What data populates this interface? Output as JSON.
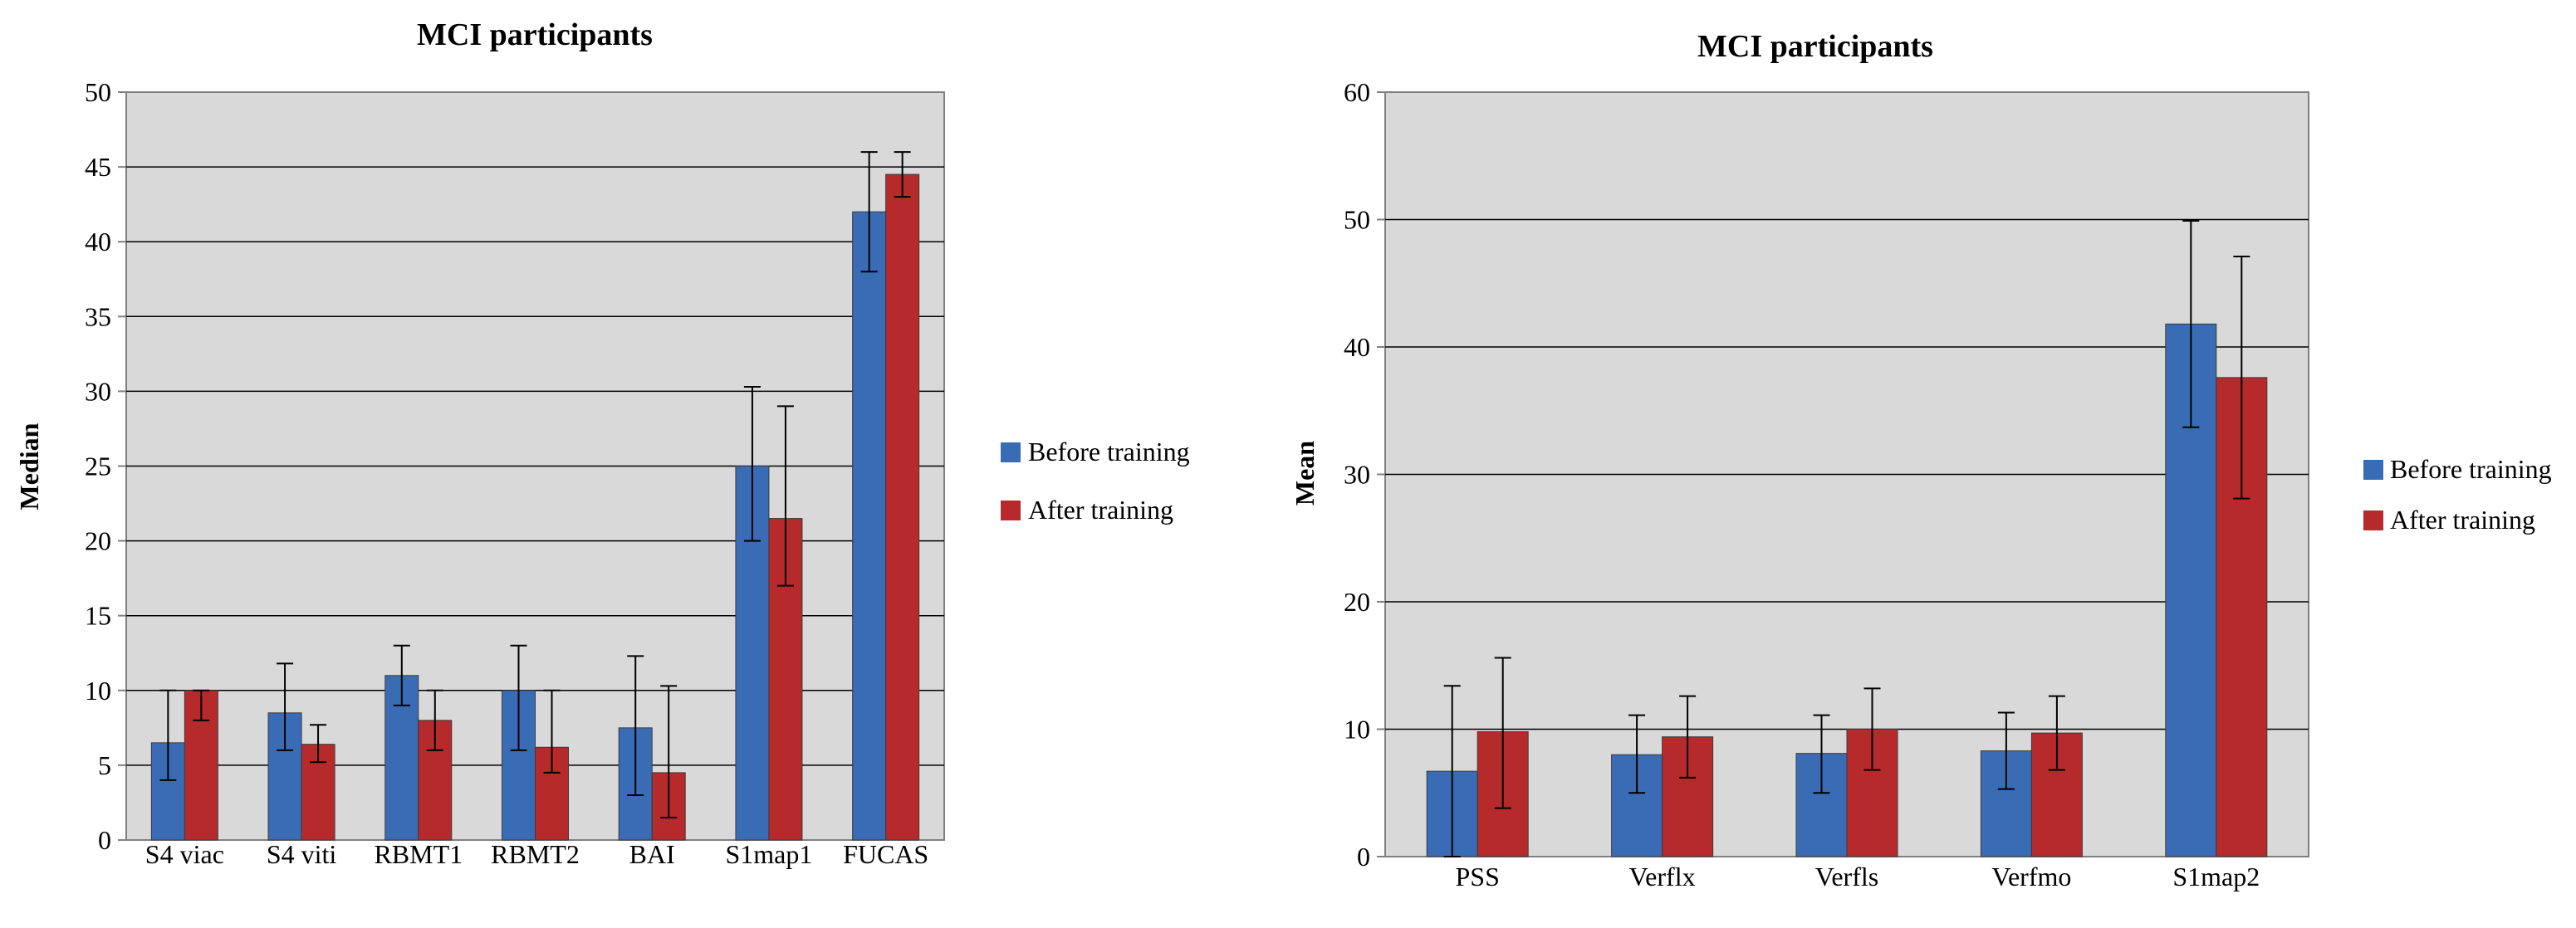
{
  "colors": {
    "before": "#3a6cb5",
    "after": "#b62a2b",
    "plot_bg": "#d9d9d9",
    "grid": "#000000"
  },
  "chart_data": [
    {
      "type": "bar",
      "title": "MCI participants",
      "xlabel": "",
      "ylabel": "Median",
      "ylim": [
        0,
        50
      ],
      "yticks": [
        0,
        5,
        10,
        15,
        20,
        25,
        30,
        35,
        40,
        45,
        50
      ],
      "categories": [
        "S4 viac",
        "S4 viti",
        "RBMT1",
        "RBMT2",
        "BAI",
        "S1map1",
        "FUCAS"
      ],
      "series": [
        {
          "name": "Before training",
          "values": [
            6.5,
            8.5,
            11,
            10,
            7.5,
            25,
            42
          ],
          "error_low": [
            4,
            6,
            9,
            6,
            3,
            20,
            38
          ],
          "error_high": [
            10,
            11.8,
            13,
            13,
            12.3,
            30.3,
            46
          ]
        },
        {
          "name": "After training",
          "values": [
            10,
            6.4,
            8,
            6.2,
            4.5,
            21.5,
            44.5
          ],
          "error_low": [
            8,
            5.2,
            6,
            4.5,
            1.5,
            17,
            43
          ],
          "error_high": [
            10,
            7.7,
            10,
            10,
            10.3,
            29,
            46
          ]
        }
      ],
      "legend": "right"
    },
    {
      "type": "bar",
      "title": "MCI participants",
      "xlabel": "",
      "ylabel": "Mean",
      "ylim": [
        0,
        60
      ],
      "yticks": [
        0,
        10,
        20,
        30,
        40,
        50,
        60
      ],
      "categories": [
        "PSS",
        "Verflx",
        "Verfls",
        "Verfmo",
        "S1map2"
      ],
      "series": [
        {
          "name": "Before training",
          "values": [
            6.7,
            8,
            8.1,
            8.3,
            41.8
          ],
          "error_low": [
            0,
            5,
            5,
            5.3,
            33.7
          ],
          "error_high": [
            13.4,
            11.1,
            11.1,
            11.3,
            49.9
          ]
        },
        {
          "name": "After training",
          "values": [
            9.8,
            9.4,
            10,
            9.7,
            37.6
          ],
          "error_low": [
            3.8,
            6.2,
            6.8,
            6.8,
            28.1
          ],
          "error_high": [
            15.6,
            12.6,
            13.2,
            12.6,
            47.1
          ]
        }
      ],
      "legend": "right"
    }
  ]
}
